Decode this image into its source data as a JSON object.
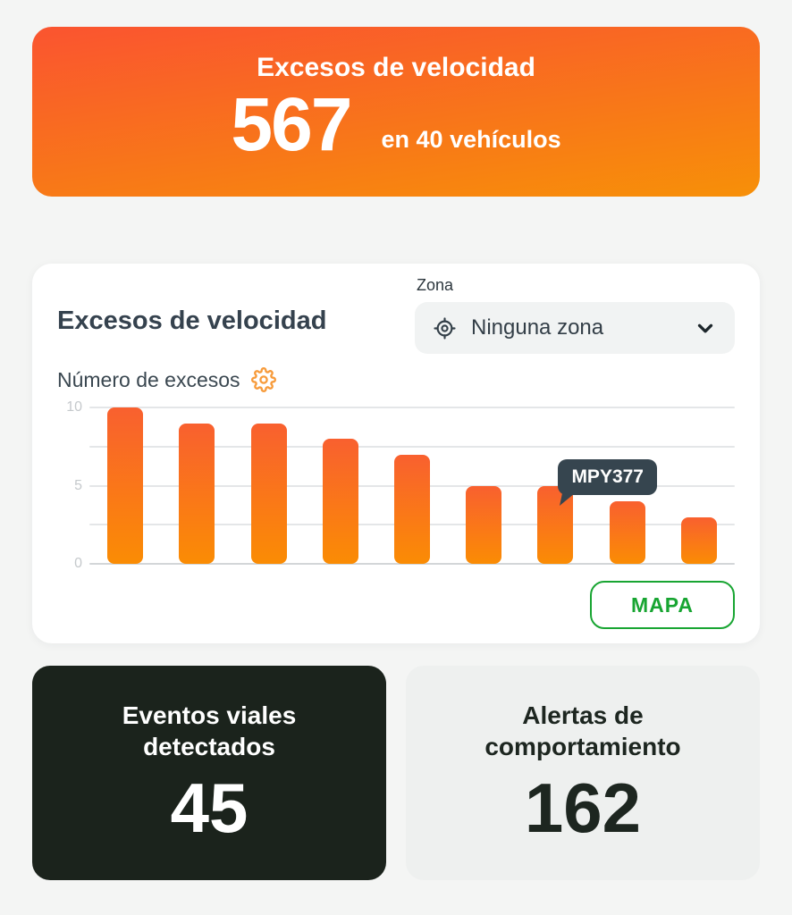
{
  "summary_card": {
    "title": "Excesos de velocidad",
    "value": "567",
    "subtitle": "en 40 vehículos"
  },
  "chart_card": {
    "title": "Excesos de velocidad",
    "zone_label": "Zona",
    "zone_value": "Ninguna zona",
    "metric_label": "Número de excesos",
    "map_button_label": "MAPA"
  },
  "chart_data": {
    "type": "bar",
    "title": "Número de excesos",
    "values": [
      10,
      9,
      9,
      8,
      7,
      5,
      5,
      4,
      3
    ],
    "xlabel": "",
    "ylabel": "",
    "ylim": [
      0,
      10
    ],
    "yticks": [
      0,
      5,
      10
    ],
    "gridlines": [
      0,
      2.5,
      5,
      7.5,
      10
    ],
    "legend": "none",
    "x_tick_labels": "none",
    "tooltip": {
      "label": "MPY377",
      "bar_index": 6
    }
  },
  "stat_cards": [
    {
      "title": "Eventos viales detectados",
      "value": "45"
    },
    {
      "title": "Alertas de comportamiento",
      "value": "162"
    }
  ],
  "colors": {
    "page_bg": "#f4f5f4",
    "summary_grad_top": "#fa5430",
    "summary_grad_bottom": "#f79008",
    "bar_grad_top": "#f9602f",
    "bar_grad_bottom": "#fa8c04",
    "heading": "#35424e",
    "tooltip_bg": "#36454f",
    "map_green": "#18a532",
    "dark_card_bg": "#1b231c",
    "light_card_bg": "#eef0ef",
    "gear_orange": "#f79b3b"
  }
}
